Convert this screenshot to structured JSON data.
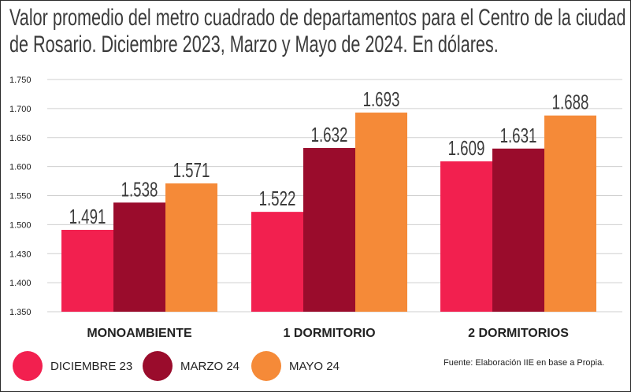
{
  "title_lines": [
    "Valor promedio del metro cuadrado de departamentos para el Centro de la ciudad",
    "de Rosario. Diciembre 2023, Marzo y Mayo de 2024. En dólares."
  ],
  "source": "Fuente: Elaboración IIE en base a Propia.",
  "colors": {
    "dic23": "#f2204f",
    "mar24": "#9a0c2c",
    "may24": "#f58a38",
    "grid": "#cfcfcf",
    "text": "#222222",
    "value": "#3b3b3b"
  },
  "chart_data": {
    "type": "bar",
    "title": "Valor promedio del metro cuadrado de departamentos para el Centro de la ciudad de Rosario. Diciembre 2023, Marzo y Mayo de 2024. En dólares.",
    "categories": [
      "MONOAMBIENTE",
      "1 DORMITORIO",
      "2 DORMITORIOS"
    ],
    "series": [
      {
        "name": "DICIEMBRE 23",
        "values": [
          1491,
          1522,
          1609
        ],
        "labels": [
          "1.491",
          "1.522",
          "1.609"
        ]
      },
      {
        "name": "MARZO 24",
        "values": [
          1538,
          1632,
          1631
        ],
        "labels": [
          "1.538",
          "1.632",
          "1.631"
        ]
      },
      {
        "name": "MAYO 24",
        "values": [
          1571,
          1693,
          1688
        ],
        "labels": [
          "1.571",
          "1.693",
          "1.688"
        ]
      }
    ],
    "yticks": [
      "1.750",
      "1.700",
      "1.650",
      "1.600",
      "1.550",
      "1.500",
      "1.430",
      "1.400",
      "1.350"
    ],
    "ylim": [
      1350,
      1750
    ],
    "grid": true,
    "legend_position": "bottom-left"
  }
}
